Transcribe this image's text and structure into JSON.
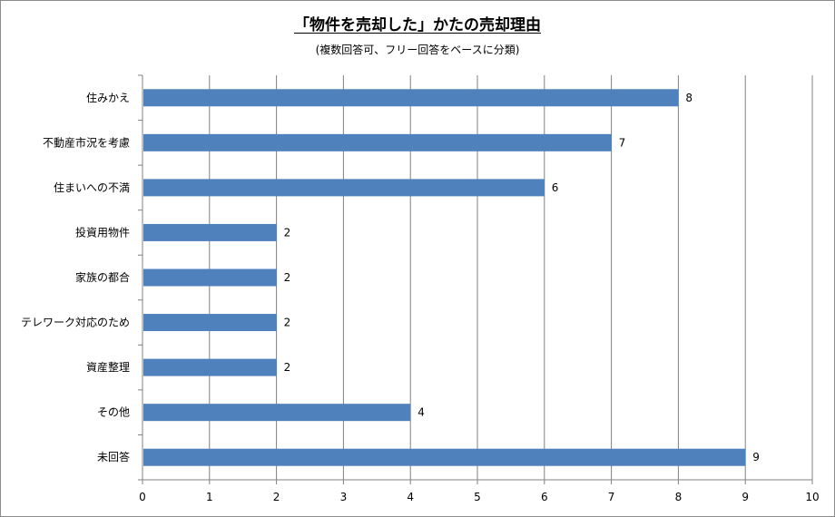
{
  "chart_data": {
    "type": "bar",
    "orientation": "horizontal",
    "title": "「物件を売却した」かたの売却理由",
    "subtitle": "(複数回答可、フリー回答をベースに分類)",
    "categories": [
      "住みかえ",
      "不動産市況を考慮",
      "住まいへの不満",
      "投資用物件",
      "家族の都合",
      "テレワーク対応のため",
      "資産整理",
      "その他",
      "未回答"
    ],
    "values": [
      8,
      7,
      6,
      2,
      2,
      2,
      2,
      4,
      9
    ],
    "xlim": [
      0,
      10
    ],
    "ticks": [
      "0",
      "1",
      "2",
      "3",
      "4",
      "5",
      "6",
      "7",
      "8",
      "9",
      "10"
    ],
    "bar_color": "#4f81bd",
    "grid": true,
    "data_labels": true,
    "legend": "none"
  }
}
